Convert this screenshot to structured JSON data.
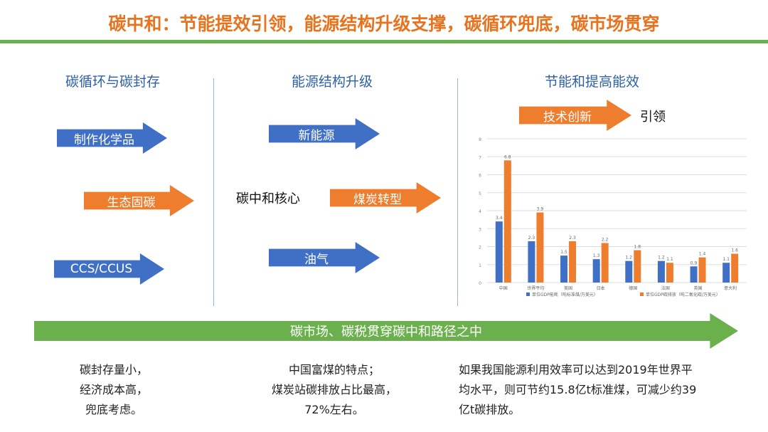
{
  "title": "碳中和：节能提效引领，能源结构升级支撑，碳循环兜底，碳市场贯穿",
  "columns": [
    {
      "heading": "碳循环与碳封存",
      "arrows": [
        "制作化学品",
        "生态固碳",
        "CCS/CCUS"
      ]
    },
    {
      "heading": "能源结构升级",
      "center": "碳中和核心",
      "arrows": [
        "新能源",
        "煤炭转型",
        "油气"
      ]
    },
    {
      "heading": "节能和提高能效",
      "arrow": "技术创新",
      "lead": "引领"
    }
  ],
  "colors": {
    "blue": "#3f70c6",
    "orange": "#ee7d2e",
    "green": "#6ab04c"
  },
  "banner": "碳市场、碳税贯穿碳中和路径之中",
  "notes": [
    [
      "碳封存量小，",
      "经济成本高，",
      "兜底考虑。"
    ],
    [
      "中国富煤的特点；",
      "煤炭站碳排放占比最高，",
      "72%左右。"
    ],
    [
      "如果我国能源利用效率可以达到2019年世界平",
      "均水平，则可节约15.8亿t标准煤，可减少约39",
      "亿t碳排放。"
    ]
  ],
  "chart_data": {
    "type": "bar",
    "categories": [
      "中国",
      "世界平均",
      "美国",
      "日本",
      "德国",
      "法国",
      "英国",
      "意大利"
    ],
    "series": [
      {
        "name": "单位GDP能耗（吨标准煤/万美元）",
        "values": [
          3.4,
          2.3,
          1.5,
          1.3,
          1.2,
          1.2,
          0.9,
          1.1
        ],
        "color": "#3f70c6"
      },
      {
        "name": "单位GDP碳排放（吨二氧化碳/万美元）",
        "values": [
          6.8,
          3.9,
          2.3,
          2.2,
          1.8,
          1.1,
          1.4,
          1.6
        ],
        "color": "#ee7d2e"
      }
    ],
    "ylim": [
      0,
      8
    ],
    "yticks": [
      0,
      1,
      2,
      3,
      4,
      5,
      6,
      7,
      8
    ],
    "grid": true,
    "legend": "bottom"
  }
}
